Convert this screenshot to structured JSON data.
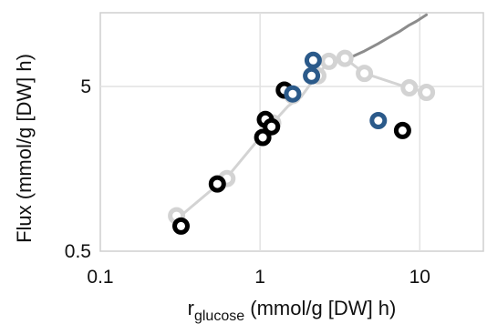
{
  "chart_data": {
    "type": "scatter",
    "x_scale": "log",
    "y_scale": "log",
    "xlim": [
      0.1,
      25
    ],
    "ylim": [
      0.5,
      14
    ],
    "x_ticks": [
      {
        "value": 0.1,
        "label": "0.1"
      },
      {
        "value": 1,
        "label": "1"
      },
      {
        "value": 10,
        "label": "10"
      }
    ],
    "y_ticks": [
      {
        "value": 0.5,
        "label": "0.5"
      },
      {
        "value": 5,
        "label": "5"
      }
    ],
    "xlabel": {
      "main": "r",
      "sub": "glucose",
      "rest": " (mmol/g [DW] h)"
    },
    "ylabel": "Flux (mmol/g [DW] h)",
    "grid": true,
    "lines": [
      {
        "color": "#d3d3d3",
        "x": [
          0.3,
          0.55,
          0.62,
          1.05,
          1.2,
          1.5,
          1.8,
          2.2,
          2.6,
          3.0,
          3.4,
          4.5,
          8.5,
          11.0
        ],
        "y": [
          0.78,
          1.28,
          1.4,
          2.6,
          3.0,
          3.8,
          4.3,
          5.6,
          6.8,
          7.2,
          7.4,
          6.0,
          4.9,
          4.6
        ]
      },
      {
        "color": "#8c8c8c",
        "x": [
          3.4,
          3.8,
          4.5,
          5.5,
          6.5,
          7.5,
          8.5,
          9.5,
          11.0
        ],
        "y": [
          7.4,
          7.6,
          8.2,
          9.1,
          10.0,
          10.8,
          11.7,
          12.4,
          13.6
        ]
      }
    ],
    "series": [
      {
        "color": "#d3d3d3",
        "x": [
          0.3,
          0.62,
          1.2,
          1.6,
          2.3,
          2.7,
          3.4,
          4.5,
          8.6,
          11.0
        ],
        "y": [
          0.82,
          1.38,
          3.0,
          4.4,
          5.8,
          7.1,
          7.4,
          6.0,
          4.9,
          4.6
        ]
      },
      {
        "color": "#000000",
        "x": [
          0.32,
          0.54,
          1.04,
          1.08,
          1.18,
          1.42,
          7.8
        ],
        "y": [
          0.71,
          1.28,
          2.45,
          3.15,
          2.85,
          4.75,
          2.7
        ]
      },
      {
        "color": "#2b5a8a",
        "x": [
          1.6,
          2.1,
          2.15,
          5.5
        ],
        "y": [
          4.5,
          5.8,
          7.2,
          3.1
        ]
      }
    ]
  }
}
